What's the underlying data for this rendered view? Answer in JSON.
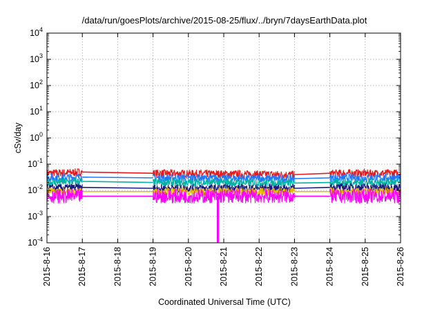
{
  "chart_data": {
    "type": "line",
    "title": "/data/run/goesPlots/archive/2015-08-25/flux/../bryn/7daysEarthData.plot",
    "xlabel": "Coordinated Universal Time (UTC)",
    "ylabel": "cSv/day",
    "y_scale": "log",
    "ylim": [
      0.0001,
      10000
    ],
    "xlim": [
      "2015-8-16",
      "2015-8-26"
    ],
    "grid": true,
    "y_ticks": [
      {
        "base": "10",
        "exp": "-4",
        "value": 0.0001
      },
      {
        "base": "10",
        "exp": "-3",
        "value": 0.001
      },
      {
        "base": "10",
        "exp": "-2",
        "value": 0.01
      },
      {
        "base": "10",
        "exp": "-1",
        "value": 0.1
      },
      {
        "base": "10",
        "exp": "0",
        "value": 1
      },
      {
        "base": "10",
        "exp": "1",
        "value": 10
      },
      {
        "base": "10",
        "exp": "2",
        "value": 100
      },
      {
        "base": "10",
        "exp": "3",
        "value": 1000
      },
      {
        "base": "10",
        "exp": "4",
        "value": 10000
      }
    ],
    "x_ticks": [
      "2015-8-16",
      "2015-8-17",
      "2015-8-18",
      "2015-8-19",
      "2015-8-20",
      "2015-8-21",
      "2015-8-22",
      "2015-8-23",
      "2015-8-24",
      "2015-8-25",
      "2015-8-26"
    ],
    "data_segments": [
      [
        "2015-8-16",
        "2015-8-17"
      ],
      [
        "2015-8-19",
        "2015-8-23"
      ],
      [
        "2015-8-24",
        "2015-8-26"
      ]
    ],
    "dropout": {
      "x": "2015-8-20 20:00",
      "y_min": 0.0001
    },
    "series": [
      {
        "color": "#e41a1c",
        "values": [
          {
            "x": "2015-8-16",
            "y": 0.045
          },
          {
            "x": "2015-8-17",
            "y": 0.05
          },
          {
            "x": "2015-8-19",
            "y": 0.045
          },
          {
            "x": "2015-8-23",
            "y": 0.04
          },
          {
            "x": "2015-8-24",
            "y": 0.045
          },
          {
            "x": "2015-8-26",
            "y": 0.045
          }
        ]
      },
      {
        "color": "#1f78ff",
        "values": [
          {
            "x": "2015-8-16",
            "y": 0.03
          },
          {
            "x": "2015-8-17",
            "y": 0.032
          },
          {
            "x": "2015-8-19",
            "y": 0.03
          },
          {
            "x": "2015-8-23",
            "y": 0.028
          },
          {
            "x": "2015-8-24",
            "y": 0.03
          },
          {
            "x": "2015-8-26",
            "y": 0.03
          }
        ]
      },
      {
        "color": "#00b3a4",
        "values": [
          {
            "x": "2015-8-16",
            "y": 0.02
          },
          {
            "x": "2015-8-17",
            "y": 0.022
          },
          {
            "x": "2015-8-19",
            "y": 0.02
          },
          {
            "x": "2015-8-23",
            "y": 0.019
          },
          {
            "x": "2015-8-24",
            "y": 0.02
          },
          {
            "x": "2015-8-26",
            "y": 0.02
          }
        ]
      },
      {
        "color": "#1a1a80",
        "values": [
          {
            "x": "2015-8-16",
            "y": 0.012
          },
          {
            "x": "2015-8-17",
            "y": 0.013
          },
          {
            "x": "2015-8-19",
            "y": 0.012
          },
          {
            "x": "2015-8-23",
            "y": 0.012
          },
          {
            "x": "2015-8-24",
            "y": 0.013
          },
          {
            "x": "2015-8-26",
            "y": 0.013
          }
        ]
      },
      {
        "color": "#e6b800",
        "values": [
          {
            "x": "2015-8-16",
            "y": 0.009
          },
          {
            "x": "2015-8-17",
            "y": 0.009
          },
          {
            "x": "2015-8-19",
            "y": 0.009
          },
          {
            "x": "2015-8-23",
            "y": 0.009
          },
          {
            "x": "2015-8-24",
            "y": 0.009
          },
          {
            "x": "2015-8-26",
            "y": 0.009
          }
        ]
      },
      {
        "color": "#ff00ff",
        "values": [
          {
            "x": "2015-8-16",
            "y": 0.006
          },
          {
            "x": "2015-8-17",
            "y": 0.006
          },
          {
            "x": "2015-8-19",
            "y": 0.006
          },
          {
            "x": "2015-8-23",
            "y": 0.006
          },
          {
            "x": "2015-8-24",
            "y": 0.006
          },
          {
            "x": "2015-8-26",
            "y": 0.006
          }
        ]
      }
    ]
  }
}
